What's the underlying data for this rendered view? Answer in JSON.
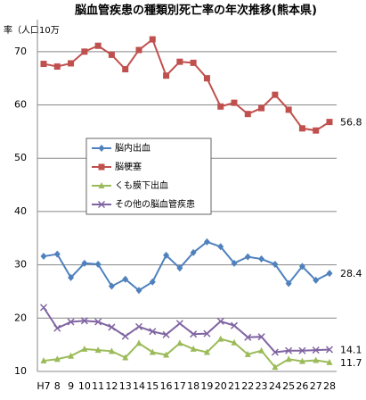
{
  "chart_data": {
    "type": "line",
    "title": "脳血管疾患の種類別死亡率の年次推移(熊本県)",
    "y_label": "率（人口10万",
    "categories": [
      "H7",
      "8",
      "9",
      "10",
      "11",
      "12",
      "13",
      "14",
      "15",
      "16",
      "17",
      "18",
      "19",
      "20",
      "21",
      "22",
      "23",
      "24",
      "25",
      "26",
      "27",
      "28"
    ],
    "series": [
      {
        "name": "脳内出血",
        "color": "#4f81bd",
        "marker": "diamond",
        "values": [
          31.6,
          32.0,
          27.6,
          30.3,
          30.1,
          26.0,
          27.3,
          25.2,
          26.8,
          31.8,
          29.4,
          32.3,
          34.3,
          33.4,
          30.3,
          31.5,
          31.1,
          30.1,
          26.5,
          29.7,
          27.1,
          28.4
        ]
      },
      {
        "name": "脳梗塞",
        "color": "#c0504d",
        "marker": "square",
        "values": [
          67.7,
          67.2,
          67.8,
          70.0,
          71.1,
          69.4,
          66.7,
          70.3,
          72.3,
          65.5,
          68.1,
          67.9,
          65.0,
          59.7,
          60.4,
          58.3,
          59.4,
          61.9,
          59.1,
          55.6,
          55.2,
          56.8
        ]
      },
      {
        "name": "くも膜下出血",
        "color": "#9bbb59",
        "marker": "triangle",
        "values": [
          12.0,
          12.3,
          12.9,
          14.2,
          14.0,
          13.8,
          12.6,
          15.3,
          13.6,
          13.1,
          15.3,
          14.2,
          13.6,
          16.1,
          15.4,
          13.2,
          13.9,
          10.8,
          12.3,
          11.9,
          12.1,
          11.7
        ]
      },
      {
        "name": "その他の脳血管疾患",
        "color": "#8064a2",
        "marker": "x",
        "values": [
          22.0,
          18.1,
          19.3,
          19.5,
          19.3,
          18.3,
          16.6,
          18.4,
          17.5,
          16.9,
          19.0,
          17.0,
          17.1,
          19.4,
          18.6,
          16.4,
          16.5,
          13.6,
          13.9,
          13.9,
          14.0,
          14.1
        ]
      }
    ],
    "ylim": [
      10,
      76
    ],
    "yticks": [
      10,
      20,
      30,
      40,
      50,
      60,
      70
    ],
    "grid": true
  }
}
